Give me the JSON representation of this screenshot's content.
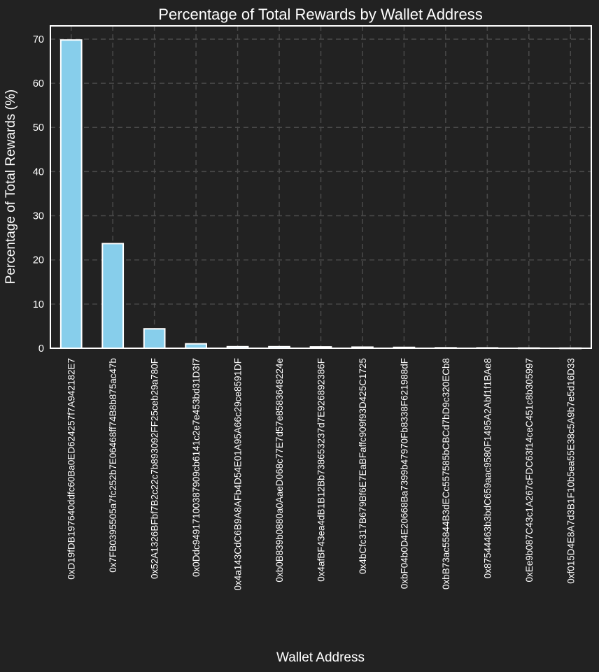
{
  "chart_data": {
    "type": "bar",
    "title": "Percentage of Total Rewards by Wallet Address",
    "xlabel": "Wallet Address",
    "ylabel": "Percentage of Total Rewards (%)",
    "ylim": [
      0,
      73
    ],
    "yticks": [
      0,
      10,
      20,
      30,
      40,
      50,
      60,
      70
    ],
    "grid": true,
    "categories": [
      "0xD19fDB197640ddfc60Ba0ED624257f7A942182E7",
      "0x7FB0395505a7fc252b7E06468ff74B8b875ac47b",
      "0x52A1326BFbf7B2c22c7b893092FF25ceb29a780F",
      "0x0Ddc94917100387909cb6141c2e7e453bd31D3f7",
      "0x4a143CdC6B9A8AFb4D54E01A95A66c29ce8591DF",
      "0xb0B839b0880a0AaeD068c77E7d57e8583648224e",
      "0x4afBF43ea4dB1B12Bb738653237d7E926892386F",
      "0x4bCfc317B679Bf6E7EaBFaffc909f93D425C1725",
      "0xbF04b0D4E20668Ba7399b47970Fb8338F621988dF",
      "0xbB73ac55844B3dECc557585bCBCd7bD9c320ECb8",
      "0x87544463b3bdC659aac9580F1495A2Abf1f1BAe8",
      "0xEe9b087C43c1A267cFDC63f14ceC451c8b305997",
      "0xf015D4E8A7d3B1F10b5ea55E38c5A9b7e5d16D33"
    ],
    "values": [
      69.8,
      23.7,
      4.4,
      1.0,
      0.35,
      0.35,
      0.3,
      0.25,
      0.2,
      0.1,
      0.08,
      0.05,
      0.03
    ],
    "colors": {
      "background": "#222222",
      "bar_fill": "#87CEEB",
      "bar_edge": "#ffffff",
      "grid": "#4a4a4a",
      "text": "#ffffff",
      "spine": "#ffffff"
    }
  }
}
